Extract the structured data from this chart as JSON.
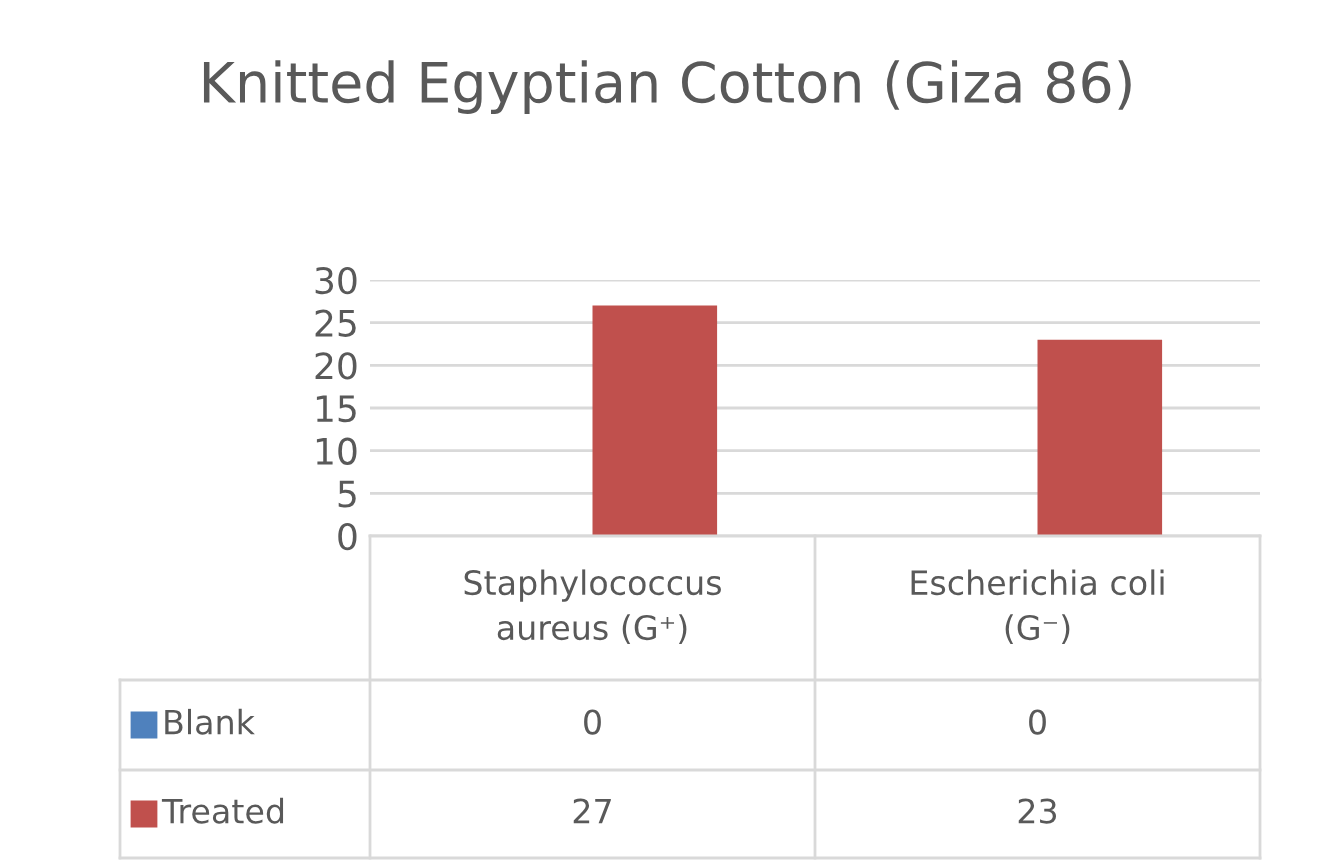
{
  "chart_data": {
    "type": "bar",
    "title": "Knitted Egyptian Cotton (Giza 86)",
    "categories": [
      "Staphylococcus\naureus (G⁺)",
      "Escherichia coli\n(G⁻)"
    ],
    "series": [
      {
        "name": "Blank",
        "color": "#4f81bd",
        "values": [
          0,
          0
        ]
      },
      {
        "name": "Treated",
        "color": "#c0504d",
        "values": [
          27,
          23
        ]
      }
    ],
    "ylim": [
      0,
      30
    ],
    "yticks": [
      0,
      5,
      10,
      15,
      20,
      25,
      30
    ],
    "grid": "y",
    "data_labels": true
  }
}
